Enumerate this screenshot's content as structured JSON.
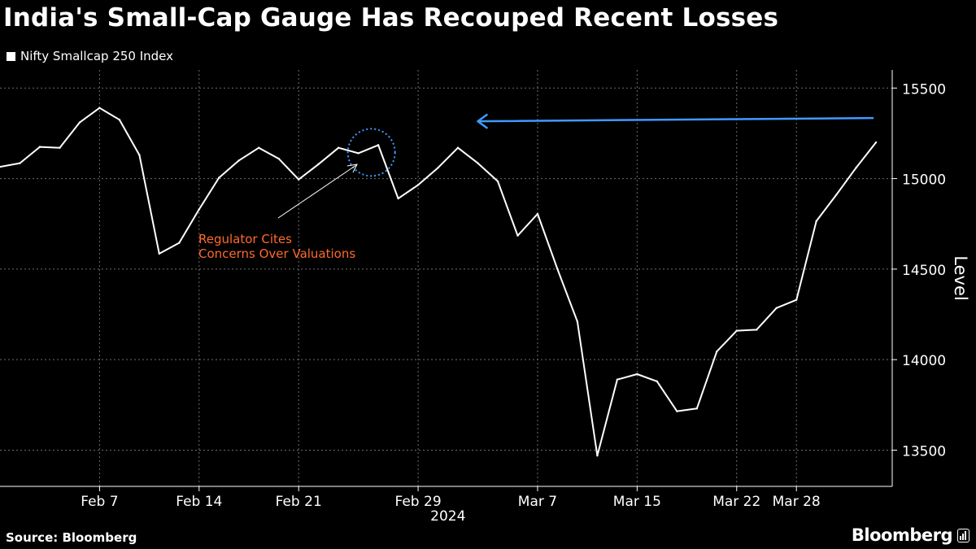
{
  "title": "India's Small-Cap Gauge Has Recouped Recent Losses",
  "legend_label": "Nifty Smallcap 250 Index",
  "source": "Source: Bloomberg",
  "brand": "Bloomberg",
  "brand_icon": "bloomberg-terminal-icon",
  "colors": {
    "background": "#000000",
    "line": "#ffffff",
    "grid": "#6e6e6e",
    "annotation_text": "#ff6a2c",
    "arrow": "#3f9bff",
    "circle": "#3f9bff"
  },
  "chart_data": {
    "type": "line",
    "title": "India's Small-Cap Gauge Has Recouped Recent Losses",
    "ylabel": "Level",
    "ylim": [
      13300,
      15600
    ],
    "yticks": [
      13500,
      14000,
      14500,
      15000,
      15500
    ],
    "xticks": [
      {
        "label": "Feb 7",
        "index": 5
      },
      {
        "label": "Feb 14",
        "index": 10
      },
      {
        "label": "Feb 21",
        "index": 15
      },
      {
        "label": "Feb 29",
        "index": 21
      },
      {
        "label": "Mar 7",
        "index": 27
      },
      {
        "label": "Mar 15",
        "index": 32
      },
      {
        "label": "Mar 22",
        "index": 37
      },
      {
        "label": "Mar 28",
        "index": 40
      }
    ],
    "year_label": "2024",
    "grid": true,
    "series": [
      {
        "name": "Nifty Smallcap 250 Index",
        "values": [
          15065,
          15085,
          15175,
          15170,
          15310,
          15390,
          15325,
          15130,
          14585,
          14645,
          14830,
          15005,
          15100,
          15170,
          15110,
          14995,
          15080,
          15170,
          15140,
          15185,
          14890,
          14965,
          15060,
          15170,
          15085,
          14985,
          14685,
          14805,
          14500,
          14210,
          13470,
          13890,
          13920,
          13880,
          13715,
          13730,
          14045,
          14160,
          14165,
          14285,
          14330,
          14765,
          14910,
          15060,
          15200
        ]
      }
    ],
    "annotations": [
      {
        "text": [
          "Regulator Cites",
          "Concerns Over Valuations"
        ],
        "target_index": 18
      }
    ],
    "reference_arrow": {
      "value": 15330,
      "from_index": 44,
      "to_index": 24
    }
  }
}
